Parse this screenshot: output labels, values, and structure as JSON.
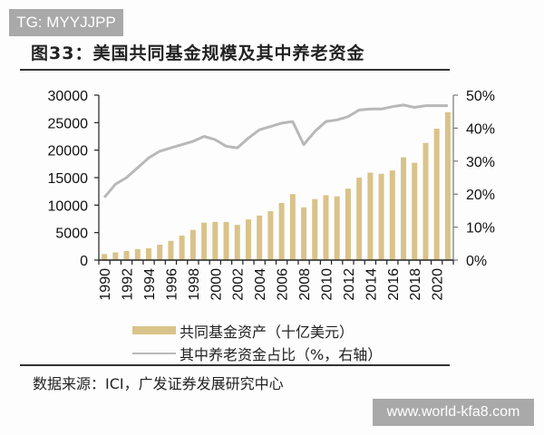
{
  "watermark_top": "TG: MYYJJPP",
  "watermark_bottom": "www.world-kfa8.com",
  "figure_title": "图33：美国共同基金规模及其中养老资金",
  "source": "数据来源：ICI，广发证券发展研究中心",
  "legend": [
    {
      "label": "共同基金资产（十亿美元）",
      "type": "bar",
      "color": "#d9c38a"
    },
    {
      "label": "其中养老资金占比（%，右轴）",
      "type": "line",
      "color": "#b8b8b8"
    }
  ],
  "chart_data": {
    "type": "bar+line",
    "title": "图33：美国共同基金规模及其中养老资金",
    "x": [
      1990,
      1991,
      1992,
      1993,
      1994,
      1995,
      1996,
      1997,
      1998,
      1999,
      2000,
      2001,
      2002,
      2003,
      2004,
      2005,
      2006,
      2007,
      2008,
      2009,
      2010,
      2011,
      2012,
      2013,
      2014,
      2015,
      2016,
      2017,
      2018,
      2019,
      2020,
      2021
    ],
    "x_tick_labels": [
      "1990",
      "1992",
      "1994",
      "1996",
      "1998",
      "2000",
      "2002",
      "2004",
      "2006",
      "2008",
      "2010",
      "2012",
      "2014",
      "2016",
      "2018",
      "2020"
    ],
    "series": [
      {
        "name": "共同基金资产（十亿美元）",
        "axis": "left",
        "type": "bar",
        "color": "#d9c38a",
        "values": [
          1100,
          1400,
          1650,
          2000,
          2150,
          2800,
          3500,
          4450,
          5500,
          6800,
          6950,
          6950,
          6400,
          7400,
          8100,
          8900,
          10400,
          12000,
          9600,
          11100,
          11800,
          11600,
          13000,
          15000,
          15900,
          15700,
          16300,
          18700,
          17700,
          21300,
          23900,
          26900
        ]
      },
      {
        "name": "其中养老资金占比（%，右轴）",
        "axis": "right",
        "type": "line",
        "color": "#b8b8b8",
        "values": [
          19,
          23,
          25,
          28,
          31,
          33,
          34,
          35,
          36,
          37.5,
          36.5,
          34.5,
          34,
          37,
          39.5,
          40.5,
          41.5,
          42,
          35,
          39,
          42,
          42.5,
          43.5,
          45.5,
          45.8,
          45.8,
          46.5,
          47,
          46.3,
          46.8,
          46.8,
          46.8
        ]
      }
    ],
    "left_axis": {
      "ylim": [
        0,
        30000
      ],
      "ticks": [
        "0",
        "5000",
        "10000",
        "15000",
        "20000",
        "25000",
        "30000"
      ]
    },
    "right_axis": {
      "ylim": [
        0,
        50
      ],
      "ticks": [
        "0%",
        "10%",
        "20%",
        "30%",
        "40%",
        "50%"
      ]
    },
    "xlabel": "",
    "ylabel": "",
    "grid": false,
    "legend_position": "bottom"
  }
}
